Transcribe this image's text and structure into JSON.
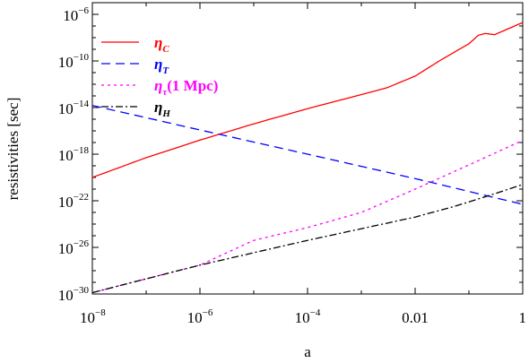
{
  "chart_data": {
    "type": "line",
    "xlabel": "a",
    "ylabel": "resistivities   [sec]",
    "xscale": "log",
    "yscale": "log",
    "xlim": [
      1e-08,
      1
    ],
    "ylim": [
      1e-30,
      1e-05
    ],
    "grid": false,
    "legend_position": "top-left",
    "x_ticks": [
      {
        "value": 1e-08,
        "base": "10",
        "exp": "−8"
      },
      {
        "value": 1e-06,
        "base": "10",
        "exp": "−6"
      },
      {
        "value": 0.0001,
        "base": "10",
        "exp": "−4"
      },
      {
        "value": 0.01,
        "base": "0.01",
        "exp": ""
      },
      {
        "value": 1,
        "base": "1",
        "exp": ""
      }
    ],
    "y_ticks": [
      {
        "value": 1e-30,
        "base": "10",
        "exp": "−30"
      },
      {
        "value": 1e-26,
        "base": "10",
        "exp": "−26"
      },
      {
        "value": 1e-22,
        "base": "10",
        "exp": "−22"
      },
      {
        "value": 1e-18,
        "base": "10",
        "exp": "−18"
      },
      {
        "value": 1e-14,
        "base": "10",
        "exp": "−14"
      },
      {
        "value": 1e-10,
        "base": "10",
        "exp": "−10"
      },
      {
        "value": 1e-06,
        "base": "10",
        "exp": "−6"
      }
    ],
    "series": [
      {
        "name": "η",
        "sub": "C",
        "suffix": "",
        "color": "#ff0000",
        "dash": "",
        "x": [
          1e-08,
          1e-07,
          1e-06,
          1e-05,
          0.0001,
          0.001,
          0.003,
          0.01,
          0.03,
          0.1,
          0.15,
          0.2,
          0.3,
          0.5,
          1
        ],
        "y": [
          1e-20,
          5e-19,
          1.6e-17,
          4e-16,
          8e-15,
          1.3e-13,
          5e-13,
          5e-12,
          1.2e-10,
          3e-09,
          1.6e-08,
          2.3e-08,
          1.8e-08,
          5e-08,
          2e-07
        ]
      },
      {
        "name": "η",
        "sub": "T",
        "suffix": "",
        "color": "#0000ff",
        "dash": "10,6",
        "x": [
          1e-08,
          1e-06,
          0.0001,
          0.01,
          1
        ],
        "y": [
          1.5e-14,
          1.2e-16,
          1e-18,
          8e-21,
          5e-23
        ]
      },
      {
        "name": "η",
        "sub": "τ",
        "suffix": "(1 Mpc)",
        "color": "#ff00ff",
        "dash": "3,4",
        "x": [
          1e-08,
          1e-07,
          1e-06,
          1e-05,
          0.0001,
          0.001,
          0.01,
          0.1,
          1
        ],
        "y": [
          1.3e-30,
          2e-29,
          3e-28,
          4e-26,
          5e-25,
          1e-23,
          1e-21,
          1.2e-19,
          1.5e-17
        ]
      },
      {
        "name": "η",
        "sub": "H",
        "suffix": "",
        "color": "#000000",
        "dash": "8,3,2,3",
        "x": [
          1e-08,
          1e-07,
          1e-06,
          1e-05,
          0.0001,
          0.001,
          0.01,
          0.05,
          0.1,
          0.3,
          1
        ],
        "y": [
          1.3e-30,
          2e-29,
          3e-28,
          3.5e-27,
          4e-26,
          4e-25,
          4e-24,
          3e-23,
          8e-23,
          4e-22,
          2.5e-21
        ]
      }
    ]
  }
}
